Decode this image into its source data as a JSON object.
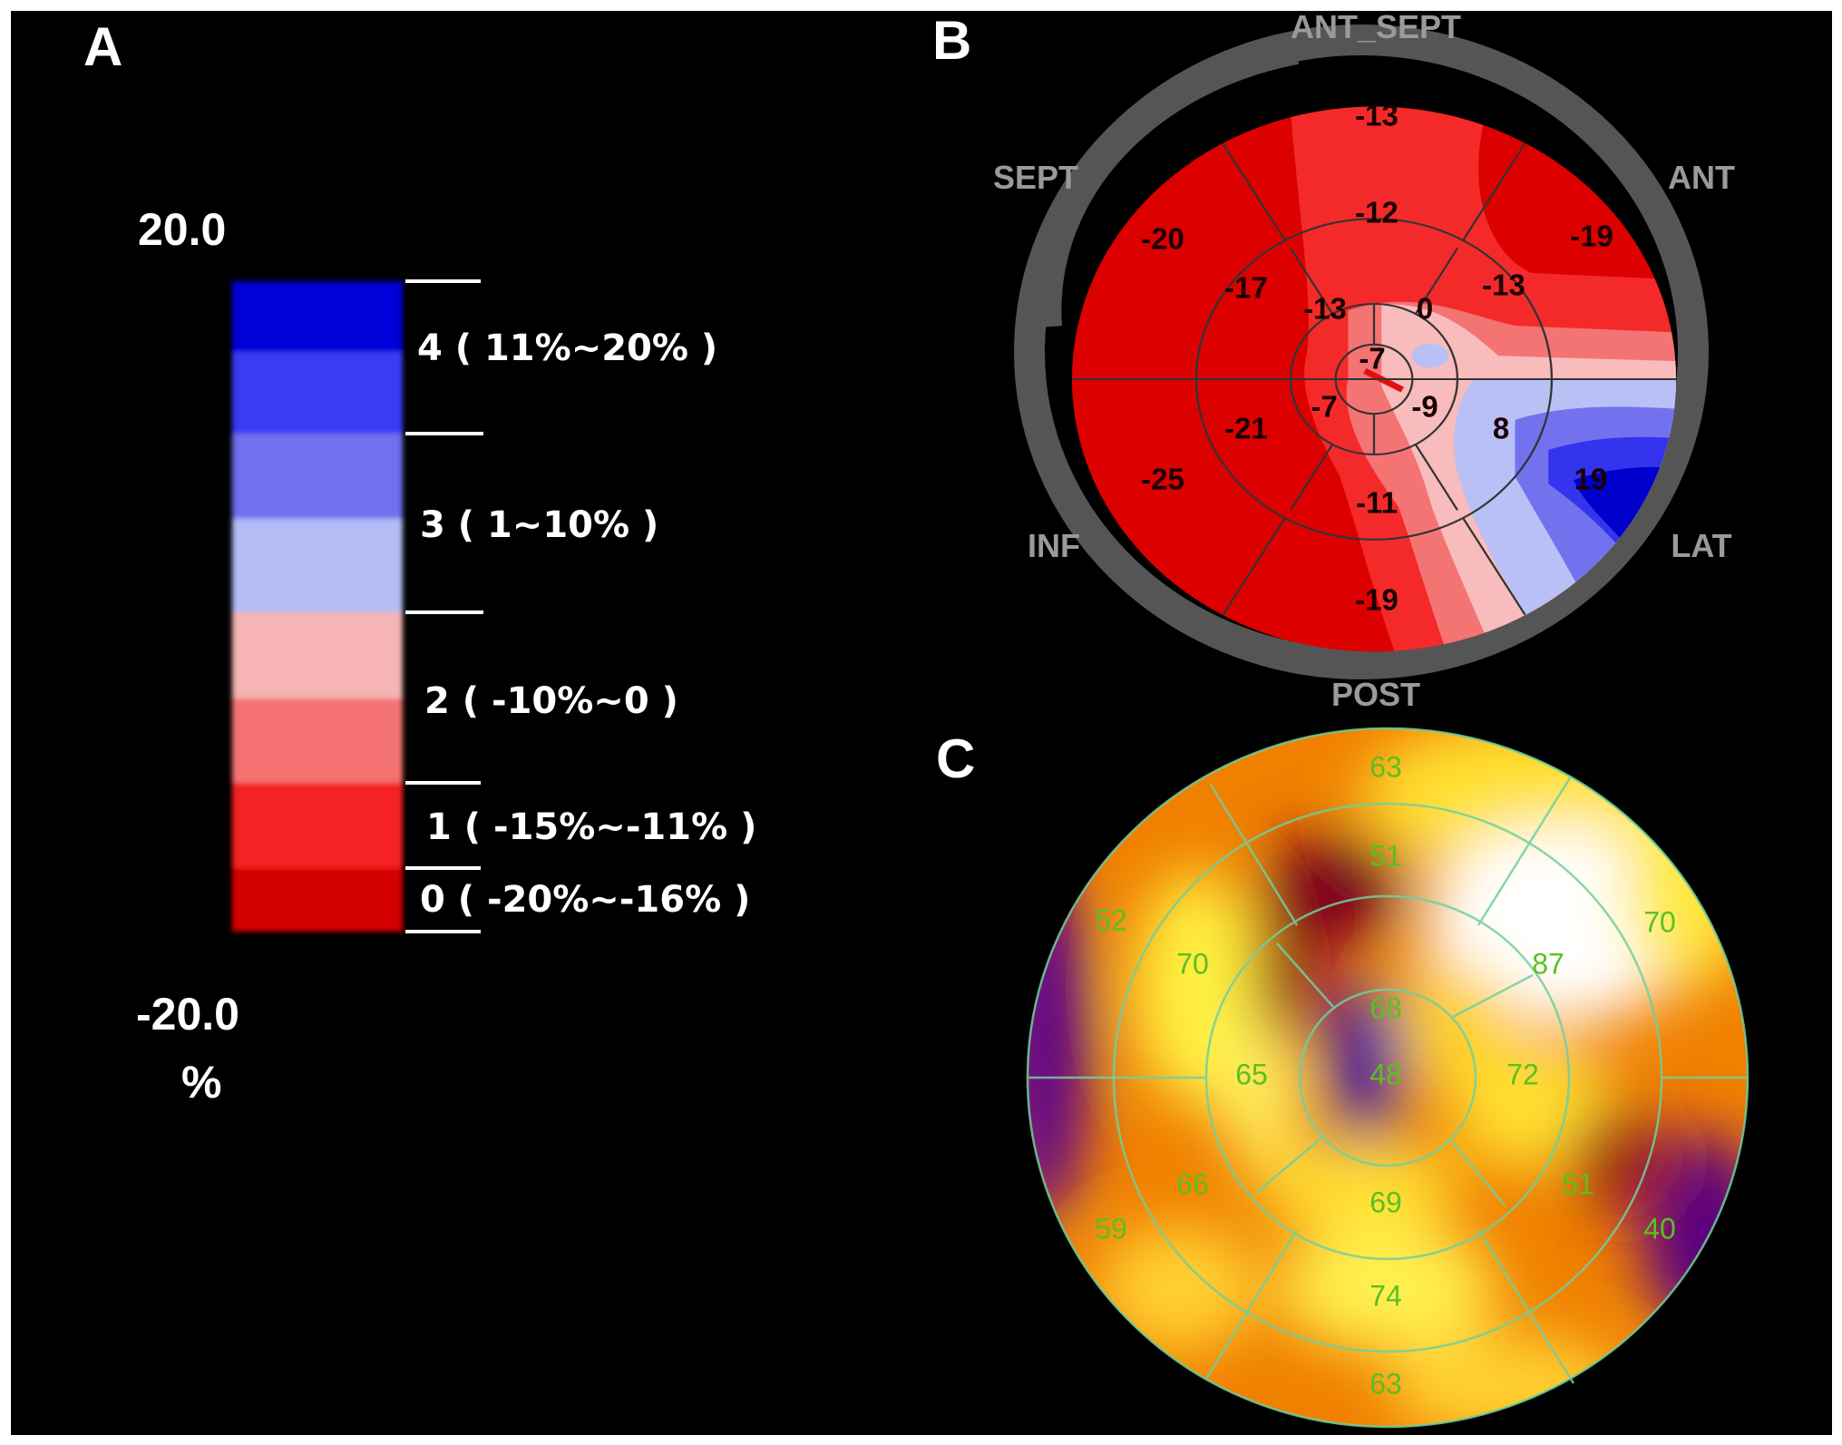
{
  "panel_labels": {
    "a": "A",
    "b": "B",
    "c": "C"
  },
  "colorbar": {
    "max_label": "20.0",
    "min_label": "-20.0",
    "unit": "%",
    "bands": [
      "#0000d8",
      "#3a3af5",
      "#7070f0",
      "#b4bcf6",
      "#f6b4b4",
      "#f47272",
      "#f42424",
      "#d40000"
    ],
    "levels": [
      {
        "label": "4 ( 11%~20% )"
      },
      {
        "label": "3 ( 1~10% )"
      },
      {
        "label": "2 ( -10%~0 )"
      },
      {
        "label": "1 ( -15%~-11% )"
      },
      {
        "label": "0  ( -20%~-16% )"
      }
    ]
  },
  "chart_data": [
    {
      "type": "heatmap",
      "subtype": "bullseye",
      "value_range": [
        -20,
        20
      ],
      "unit": "%",
      "directions": {
        "top": "ANT_SEPT",
        "upper_left": "SEPT",
        "upper_right": "ANT",
        "lower_left": "INF",
        "lower_right": "LAT",
        "bottom": "POST"
      },
      "values": [
        "-13",
        "-12",
        "-20",
        "-19",
        "-17",
        "-13",
        "0",
        "-13",
        "-7",
        "-7",
        "-9",
        "-21",
        "8",
        "-25",
        "19",
        "-11",
        "-19"
      ]
    },
    {
      "type": "heatmap",
      "subtype": "bullseye",
      "colors": {
        "low": "#4a0090",
        "mid": "#f08000",
        "high": "#ffffff"
      },
      "values": [
        "63",
        "51",
        "52",
        "70",
        "70",
        "87",
        "68",
        "65",
        "48",
        "72",
        "66",
        "51",
        "69",
        "59",
        "40",
        "74",
        "63"
      ]
    }
  ]
}
